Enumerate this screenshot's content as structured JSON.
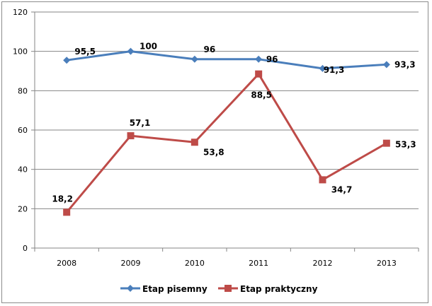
{
  "chart_data": {
    "type": "line",
    "title": "",
    "xlabel": "",
    "ylabel": "",
    "categories": [
      "2008",
      "2009",
      "2010",
      "2011",
      "2012",
      "2013"
    ],
    "ylim": [
      0,
      120
    ],
    "yticks": [
      0,
      20,
      40,
      60,
      80,
      100,
      120
    ],
    "grid": true,
    "legend": "bottom",
    "series": [
      {
        "name": "Etap pisemny",
        "color": "#4a7ebb",
        "marker": "diamond",
        "values": [
          95.5,
          100,
          96,
          96,
          91.3,
          93.3
        ],
        "labels": [
          "95,5",
          "100",
          "96",
          "96",
          "91,3",
          "93,3"
        ]
      },
      {
        "name": "Etap praktyczny",
        "color": "#be4b48",
        "marker": "square",
        "values": [
          18.2,
          57.1,
          53.8,
          88.5,
          34.7,
          53.3
        ],
        "labels": [
          "18,2",
          "57,1",
          "53,8",
          "88,5",
          "34,7",
          "53,3"
        ]
      }
    ]
  }
}
